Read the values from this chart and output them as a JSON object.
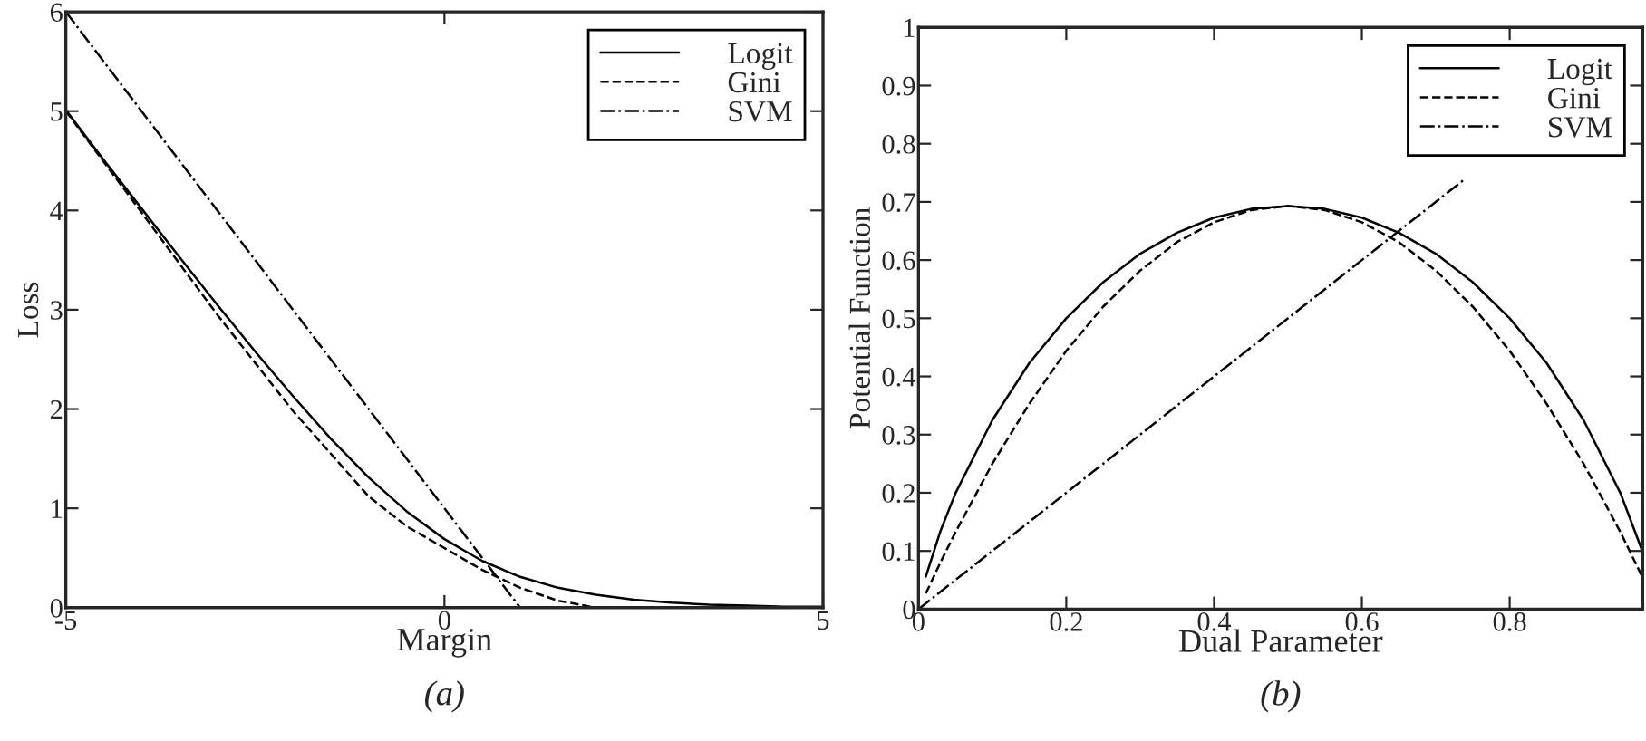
{
  "chart_data": [
    {
      "type": "line",
      "xlabel": "Margin",
      "ylabel": "Loss",
      "xlim": [
        -5,
        5
      ],
      "ylim": [
        0,
        6
      ],
      "xticks": [
        -5,
        0,
        5
      ],
      "yticks": [
        0,
        1,
        2,
        3,
        4,
        5,
        6
      ],
      "grid": false,
      "legend": "top right",
      "annotations": [
        "(a)"
      ],
      "series": [
        {
          "name": "Logit",
          "color": "#000000",
          "line_style": "solid",
          "x": [
            -5,
            -4.5,
            -4,
            -3.5,
            -3,
            -2.5,
            -2,
            -1.5,
            -1,
            -0.5,
            0,
            0.5,
            1,
            1.5,
            2,
            2.5,
            3,
            3.5,
            4,
            4.5,
            5
          ],
          "values": [
            5.01,
            4.51,
            4.02,
            3.53,
            3.05,
            2.58,
            2.13,
            1.7,
            1.31,
            0.97,
            0.69,
            0.47,
            0.31,
            0.2,
            0.13,
            0.08,
            0.05,
            0.03,
            0.02,
            0.01,
            0.01
          ]
        },
        {
          "name": "Gini",
          "color": "#000000",
          "line_style": "dashed",
          "x": [
            -5,
            -4,
            -3,
            -2,
            -1,
            -0.5,
            0,
            0.5,
            1,
            1.5,
            2,
            5
          ],
          "values": [
            5.0,
            3.98,
            2.95,
            1.98,
            1.12,
            0.82,
            0.6,
            0.38,
            0.2,
            0.07,
            0.0,
            0.0
          ]
        },
        {
          "name": "SVM",
          "color": "#000000",
          "line_style": "dashdot",
          "x": [
            -5,
            1,
            5
          ],
          "values": [
            6,
            0,
            0
          ]
        }
      ]
    },
    {
      "type": "line",
      "xlabel": "Dual Parameter",
      "ylabel": "Potential Function",
      "xlim": [
        0,
        0.98
      ],
      "ylim": [
        0,
        1
      ],
      "xticks": [
        0,
        0.2,
        0.4,
        0.6,
        0.8
      ],
      "yticks": [
        0,
        0.1,
        0.2,
        0.3,
        0.4,
        0.5,
        0.6,
        0.7,
        0.8,
        0.9,
        1
      ],
      "grid": false,
      "legend": "top right",
      "annotations": [
        "(b)"
      ],
      "series": [
        {
          "name": "Logit",
          "color": "#000000",
          "line_style": "solid",
          "x": [
            0.01,
            0.03,
            0.05,
            0.1,
            0.15,
            0.2,
            0.25,
            0.3,
            0.35,
            0.4,
            0.45,
            0.5,
            0.55,
            0.6,
            0.65,
            0.7,
            0.75,
            0.8,
            0.85,
            0.9,
            0.95,
            0.98
          ],
          "values": [
            0.056,
            0.135,
            0.199,
            0.325,
            0.423,
            0.5,
            0.562,
            0.611,
            0.647,
            0.673,
            0.688,
            0.693,
            0.688,
            0.673,
            0.647,
            0.611,
            0.562,
            0.5,
            0.423,
            0.325,
            0.199,
            0.098
          ]
        },
        {
          "name": "Gini",
          "color": "#000000",
          "line_style": "dashed",
          "x": [
            0.01,
            0.03,
            0.05,
            0.1,
            0.15,
            0.2,
            0.25,
            0.3,
            0.35,
            0.4,
            0.45,
            0.5,
            0.55,
            0.6,
            0.65,
            0.7,
            0.75,
            0.8,
            0.85,
            0.9,
            0.95,
            0.98
          ],
          "values": [
            0.027,
            0.081,
            0.132,
            0.25,
            0.353,
            0.444,
            0.52,
            0.582,
            0.631,
            0.665,
            0.686,
            0.693,
            0.686,
            0.665,
            0.631,
            0.582,
            0.52,
            0.444,
            0.353,
            0.25,
            0.132,
            0.054
          ]
        },
        {
          "name": "SVM",
          "color": "#000000",
          "line_style": "dashdot",
          "x": [
            0,
            0.74
          ],
          "values": [
            0,
            0.74
          ]
        }
      ]
    }
  ]
}
